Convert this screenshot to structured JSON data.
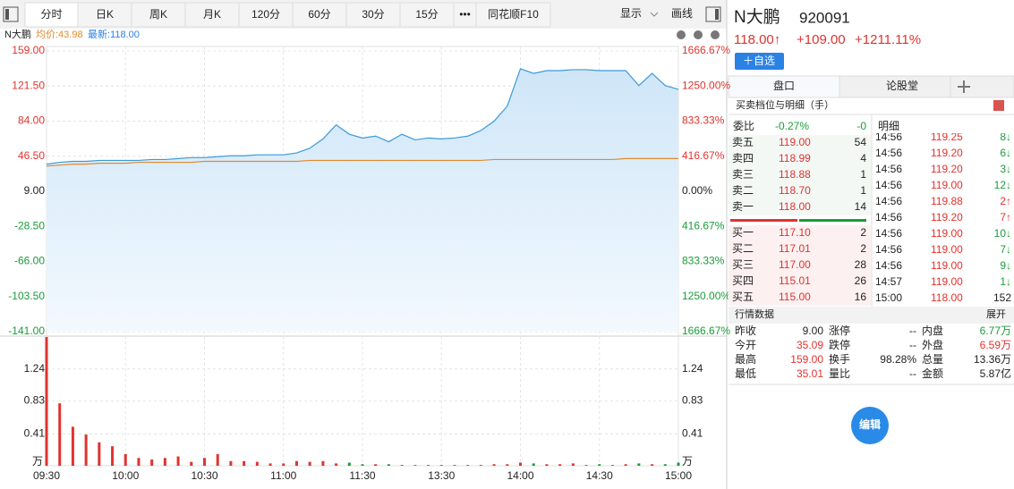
{
  "toolbar": {
    "tabs": [
      "分时",
      "日K",
      "周K",
      "月K",
      "120分",
      "60分",
      "30分",
      "15分",
      "•••",
      "同花顺F10"
    ],
    "display": "显示",
    "draw": "画线"
  },
  "chart_header": {
    "name": "N大鹏",
    "avg": "均价:43.98",
    "latest": "最新:118.00"
  },
  "chart_data": [
    {
      "type": "line",
      "x": [
        "09:30",
        "09:35",
        "09:40",
        "09:45",
        "09:50",
        "09:55",
        "10:00",
        "10:05",
        "10:10",
        "10:15",
        "10:20",
        "10:25",
        "10:30",
        "10:35",
        "10:40",
        "10:45",
        "10:50",
        "10:55",
        "11:00",
        "11:05",
        "11:10",
        "11:15",
        "11:20",
        "11:25",
        "11:30",
        "13:05",
        "13:10",
        "13:15",
        "13:20",
        "13:25",
        "13:30",
        "13:35",
        "13:40",
        "13:45",
        "13:50",
        "13:55",
        "14:00",
        "14:05",
        "14:10",
        "14:15",
        "14:20",
        "14:25",
        "14:30",
        "14:35",
        "14:40",
        "14:45",
        "14:50",
        "14:55",
        "15:00"
      ],
      "series": [
        {
          "color": "#3a9ad9",
          "values": [
            38,
            40,
            41,
            41,
            42,
            42,
            42,
            42,
            43,
            43,
            44,
            45,
            45,
            46,
            47,
            47,
            48,
            48,
            48,
            50,
            55,
            65,
            80,
            70,
            66,
            68,
            62,
            70,
            64,
            66,
            65,
            66,
            68,
            74,
            84,
            100,
            140,
            135,
            138,
            138,
            139,
            139,
            138,
            138,
            138,
            122,
            135,
            122,
            118
          ]
        },
        {
          "color": "#e08a2e",
          "values": [
            36,
            37,
            38,
            38,
            39,
            39,
            39,
            40,
            40,
            40,
            40,
            40,
            41,
            41,
            41,
            41,
            41,
            41,
            41,
            41,
            42,
            42,
            42,
            42,
            42,
            42,
            42,
            42,
            42,
            42,
            42,
            42,
            42,
            42,
            43,
            43,
            43,
            43,
            43,
            43,
            43,
            43,
            43,
            43,
            44,
            44,
            44,
            44,
            43.98
          ]
        }
      ],
      "ylim": [
        -141,
        159
      ],
      "yticks": [
        {
          "value": 159,
          "label": "159.00"
        },
        {
          "value": 121.5,
          "label": "121.50"
        },
        {
          "value": 84,
          "label": "84.00"
        },
        {
          "value": 46.5,
          "label": "46.50"
        },
        {
          "value": 9,
          "label": "9.00"
        },
        {
          "value": -28.5,
          "label": "-28.50"
        },
        {
          "value": -66,
          "label": "-66.00"
        },
        {
          "value": -103.5,
          "label": "-103.50"
        },
        {
          "value": -141,
          "label": "-141.00"
        }
      ],
      "y2lim": [
        -1666.67,
        1666.67
      ],
      "y2ticks": [
        {
          "value": 1666.67,
          "label": "1666.67%"
        },
        {
          "value": 1250,
          "label": "1250.00%"
        },
        {
          "value": 833.33,
          "label": "833.33%"
        },
        {
          "value": 416.67,
          "label": "416.67%"
        },
        {
          "value": 0,
          "label": "0.00%"
        },
        {
          "value": -416.67,
          "label": "416.67%"
        },
        {
          "value": -833.33,
          "label": "833.33%"
        },
        {
          "value": -1250,
          "label": "1250.00%"
        },
        {
          "value": -1666.67,
          "label": "1666.67%"
        }
      ],
      "grid": true
    },
    {
      "type": "bar",
      "x": [
        "09:30",
        "09:35",
        "09:40",
        "09:45",
        "09:50",
        "09:55",
        "10:00",
        "10:05",
        "10:10",
        "10:15",
        "10:20",
        "10:25",
        "10:30",
        "10:35",
        "10:40",
        "10:45",
        "10:50",
        "10:55",
        "11:00",
        "11:05",
        "11:10",
        "11:15",
        "11:20",
        "11:25",
        "11:30",
        "13:05",
        "13:10",
        "13:15",
        "13:20",
        "13:25",
        "13:30",
        "13:35",
        "13:40",
        "13:45",
        "13:50",
        "13:55",
        "14:00",
        "14:05",
        "14:10",
        "14:15",
        "14:20",
        "14:25",
        "14:30",
        "14:35",
        "14:40",
        "14:45",
        "14:50",
        "14:55",
        "15:00"
      ],
      "values": [
        1.65,
        0.8,
        0.5,
        0.4,
        0.3,
        0.25,
        0.15,
        0.1,
        0.08,
        0.1,
        0.12,
        0.05,
        0.1,
        0.15,
        0.06,
        0.06,
        0.05,
        0.03,
        0.03,
        0.06,
        0.05,
        0.06,
        0.03,
        0.04,
        0.02,
        0.02,
        0.02,
        0.01,
        0.01,
        0.01,
        0.01,
        0.01,
        0.01,
        0.01,
        0.02,
        0.02,
        0.04,
        0.03,
        0.02,
        0.02,
        0.03,
        0.01,
        0.02,
        0.01,
        0.02,
        0.03,
        0.02,
        0.02,
        0.04
      ],
      "up_color": "#e0332f",
      "down_color": "#1a9c3a",
      "ylim": [
        0,
        1.65
      ],
      "yticks": [
        0.41,
        0.83,
        1.24
      ],
      "unit": "万",
      "xticks": [
        "09:30",
        "10:00",
        "10:30",
        "11:00",
        "11:30",
        "13:30",
        "14:00",
        "14:30",
        "15:00"
      ],
      "grid": true
    }
  ],
  "quote": {
    "name": "N大鹏",
    "code": "920091",
    "price": "118.00↑",
    "change": "+109.00",
    "change_pct": "+1211.11%",
    "watch_button": "＋自选"
  },
  "tabs": [
    "盘口",
    "论股堂"
  ],
  "section_title": "买卖档位与明细（手）",
  "order_book": {
    "ratio_label": "委比",
    "ratio": "-0.27%",
    "diff": "-0",
    "sells": [
      [
        "卖五",
        "119.00",
        "54"
      ],
      [
        "卖四",
        "118.99",
        "4"
      ],
      [
        "卖三",
        "118.88",
        "1"
      ],
      [
        "卖二",
        "118.70",
        "1"
      ],
      [
        "卖一",
        "118.00",
        "14"
      ]
    ],
    "buys": [
      [
        "买一",
        "117.10",
        "2"
      ],
      [
        "买二",
        "117.01",
        "2"
      ],
      [
        "买三",
        "117.00",
        "28"
      ],
      [
        "买四",
        "115.01",
        "26"
      ],
      [
        "买五",
        "115.00",
        "16"
      ]
    ]
  },
  "details": {
    "title": "明细",
    "rows": [
      [
        "14:56",
        "119.25",
        "8↓"
      ],
      [
        "14:56",
        "119.20",
        "6↓"
      ],
      [
        "14:56",
        "119.20",
        "3↓"
      ],
      [
        "14:56",
        "119.00",
        "12↓"
      ],
      [
        "14:56",
        "119.88",
        "2↑"
      ],
      [
        "14:56",
        "119.20",
        "7↑"
      ],
      [
        "14:56",
        "119.00",
        "10↓"
      ],
      [
        "14:56",
        "119.00",
        "7↓"
      ],
      [
        "14:56",
        "119.00",
        "9↓"
      ],
      [
        "14:57",
        "119.00",
        "1↓"
      ],
      [
        "15:00",
        "118.00",
        "152"
      ]
    ]
  },
  "market_data": {
    "title": "行情数据",
    "expand": "展开",
    "rows": [
      [
        "昨收",
        "9.00",
        "涨停",
        "--",
        "内盘",
        "6.77万"
      ],
      [
        "今开",
        "35.09",
        "跌停",
        "--",
        "外盘",
        "6.59万"
      ],
      [
        "最高",
        "159.00",
        "换手",
        "98.28%",
        "总量",
        "13.36万"
      ],
      [
        "最低",
        "35.01",
        "量比",
        "--",
        "金额",
        "5.87亿"
      ]
    ]
  },
  "edit_button": "编辑"
}
